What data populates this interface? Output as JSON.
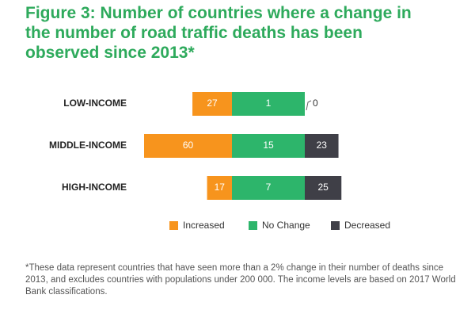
{
  "chart_data": {
    "type": "diverging_bar",
    "title": "Figure 3: Number of countries where a change in the number of road traffic deaths has been observed since 2013*",
    "categories": [
      "LOW-INCOME",
      "MIDDLE-INCOME",
      "HIGH-INCOME"
    ],
    "series": [
      {
        "name": "Increased",
        "color": "#f7941d",
        "values": [
          27,
          60,
          17
        ]
      },
      {
        "name": "No Change",
        "color": "#2db56b",
        "values": [
          1,
          15,
          7
        ]
      },
      {
        "name": "Decreased",
        "color": "#3f3f47",
        "values": [
          0,
          23,
          25
        ]
      }
    ],
    "footnote": "*These data represent countries that have seen more than a 2% change in their number of deaths since 2013, and excludes countries with populations under 200 000. The income levels are based on 2017 World Bank classifications."
  }
}
